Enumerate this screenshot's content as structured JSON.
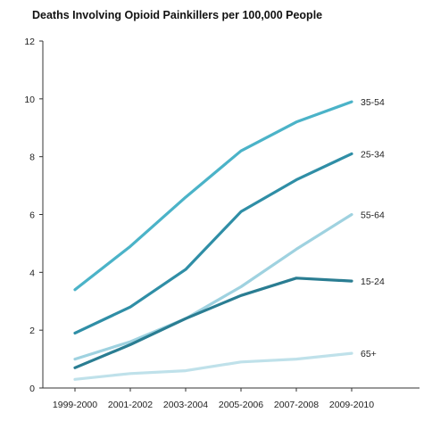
{
  "chart_data": {
    "type": "line",
    "title": "Deaths Involving Opioid Painkillers per 100,000 People",
    "xlabel": "",
    "ylabel": "",
    "categories": [
      "1999-2000",
      "2001-2002",
      "2003-2004",
      "2005-2006",
      "2007-2008",
      "2009-2010"
    ],
    "ylim": [
      0,
      12
    ],
    "yticks": [
      0,
      2,
      4,
      6,
      8,
      10,
      12
    ],
    "grid": false,
    "legend": "inline labels at right end of each line",
    "series": [
      {
        "name": "35-54",
        "color": "#4bb3c8",
        "values": [
          3.4,
          4.9,
          6.6,
          8.2,
          9.2,
          9.9
        ]
      },
      {
        "name": "25-34",
        "color": "#2f8ea6",
        "values": [
          1.9,
          2.8,
          4.1,
          6.1,
          7.2,
          8.1
        ]
      },
      {
        "name": "55-64",
        "color": "#9fd2e0",
        "values": [
          1.0,
          1.6,
          2.4,
          3.5,
          4.8,
          6.0
        ]
      },
      {
        "name": "15-24",
        "color": "#2a7d92",
        "values": [
          0.7,
          1.5,
          2.4,
          3.2,
          3.8,
          3.7
        ]
      },
      {
        "name": "65+",
        "color": "#bfe1ea",
        "values": [
          0.3,
          0.5,
          0.6,
          0.9,
          1.0,
          1.2
        ]
      }
    ]
  }
}
